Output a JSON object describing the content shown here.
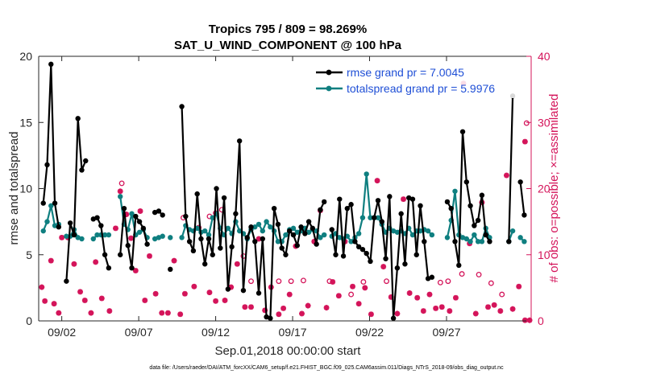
{
  "chart_data": {
    "type": "line",
    "title_line1": "Tropics 795 / 809 = 98.269%",
    "title_line2": "SAT_U_WIND_COMPONENT @ 100 hPa",
    "xlabel": "Sep.01,2018 00:00:00 start",
    "ylabel_left": "rmse and totalspread",
    "ylabel_right": "# of obs: o=possible; ×=assimilated",
    "footnote": "data file: /Users/raeder/DAI/ATM_forcXX/CAM6_setup/f.e21.FHIST_BGC.f09_025.CAM6assim.011/Diags_NTrS_2018-09/obs_diag_output.nc",
    "x_range": [
      0,
      32
    ],
    "y_left_range": [
      0,
      20
    ],
    "y_right_range": [
      0,
      40
    ],
    "x_ticks": [
      {
        "value": 1.5,
        "label": "09/02"
      },
      {
        "value": 6.5,
        "label": "09/07"
      },
      {
        "value": 11.5,
        "label": "09/12"
      },
      {
        "value": 16.5,
        "label": "09/17"
      },
      {
        "value": 21.5,
        "label": "09/22"
      },
      {
        "value": 26.5,
        "label": "09/27"
      }
    ],
    "y_left_ticks": [
      "0",
      "5",
      "10",
      "15",
      "20"
    ],
    "y_right_ticks": [
      "0",
      "10",
      "20",
      "30",
      "40"
    ],
    "colors": {
      "rmse": "#000000",
      "spread": "#0f7f80",
      "obs": "#d4145a",
      "legend_text": "#1f4fd6"
    },
    "series": [
      {
        "name": "rmse grand pr = 7.0045",
        "values": [
          8.9,
          11.8,
          19.4,
          8.9,
          7.1,
          null,
          3.0,
          7.4,
          6.5,
          15.3,
          11.4,
          12.1,
          null,
          7.7,
          7.8,
          7.2,
          5.0,
          4.0,
          null,
          null,
          5.0,
          8.5,
          5.7,
          4.0,
          7.9,
          7.5,
          7.0,
          5.8,
          null,
          8.2,
          8.3,
          8.0,
          null,
          3.9,
          null,
          null,
          16.2,
          7.9,
          6.0,
          5.3,
          9.6,
          6.2,
          4.3,
          6.2,
          5.0,
          10.0,
          5.5,
          9.3,
          2.4,
          5.6,
          8.1,
          13.6,
          2.3,
          6.3,
          7.1,
          6.0,
          2.1,
          6.2,
          0.3,
          0.2,
          8.5,
          7.3,
          5.5,
          5.0,
          6.8,
          6.5,
          5.7,
          7.1,
          6.6,
          7.5,
          7.0,
          5.8,
          8.4,
          9.0,
          null,
          6.9,
          5.0,
          9.2,
          4.9,
          8.5,
          8.8,
          6.0,
          5.6,
          5.4,
          5.1,
          4.5,
          7.8,
          9.1,
          7.5,
          4.7,
          9.4,
          0.2,
          4.0,
          8.1,
          4.3,
          9.3,
          9.2,
          5.0,
          8.7,
          6.0,
          3.2,
          3.3,
          null,
          null,
          null,
          9.0,
          8.5,
          6.0,
          4.2,
          14.3,
          10.5,
          8.7,
          7.2,
          7.6,
          9.5,
          6.5,
          6.0,
          null,
          null,
          null,
          null,
          6.0,
          17.0,
          null,
          10.5,
          8.0
        ]
      },
      {
        "name": "totalspread grand pr = 5.9976",
        "values": [
          6.8,
          7.5,
          8.7,
          7.2,
          7.3,
          null,
          6.4,
          6.4,
          6.9,
          6.3,
          6.2,
          null,
          null,
          6.2,
          6.5,
          6.5,
          6.5,
          6.5,
          null,
          null,
          9.4,
          7.3,
          6.9,
          8.1,
          6.5,
          6.7,
          6.9,
          6.3,
          null,
          6.2,
          6.3,
          6.4,
          null,
          6.3,
          null,
          null,
          6.3,
          7.2,
          6.9,
          6.8,
          7.0,
          6.7,
          6.8,
          6.5,
          7.8,
          8.1,
          7.0,
          6.5,
          7.0,
          6.6,
          7.5,
          6.8,
          6.6,
          6.2,
          6.9,
          7.1,
          7.3,
          6.8,
          7.5,
          7.1,
          6.8,
          6.0,
          6.0,
          6.5,
          6.9,
          7.0,
          6.7,
          6.8,
          7.0,
          6.7,
          6.9,
          6.8,
          6.3,
          6.5,
          null,
          6.4,
          6.6,
          6.3,
          6.2,
          6.4,
          6.0,
          6.3,
          6.6,
          7.8,
          11.1,
          7.8,
          7.8,
          7.8,
          7.3,
          6.7,
          7.0,
          6.8,
          6.7,
          6.8,
          6.6,
          7.0,
          6.5,
          6.8,
          6.8,
          6.9,
          6.8,
          6.5,
          null,
          null,
          null,
          6.3,
          7.6,
          9.8,
          6.5,
          6.3,
          6.2,
          6.0,
          6.5,
          6.0,
          6.0,
          7.0,
          6.3,
          null,
          null,
          null,
          null,
          6.0,
          6.8,
          null,
          6.3,
          6.0
        ]
      }
    ],
    "obs_possible": [
      {
        "x": 5.4,
        "y": 20.8
      },
      {
        "x": 9.4,
        "y": 15.6
      },
      {
        "x": 11.1,
        "y": 15.8
      },
      {
        "x": 11.9,
        "y": 16.8
      },
      {
        "x": 11.5,
        "y": 16.3
      },
      {
        "x": 13.3,
        "y": 9.8
      },
      {
        "x": 13.8,
        "y": 6.0
      },
      {
        "x": 15.6,
        "y": 6.0
      },
      {
        "x": 16.4,
        "y": 6.0
      },
      {
        "x": 17.2,
        "y": 6.1
      },
      {
        "x": 18.9,
        "y": 6.0
      },
      {
        "x": 20.3,
        "y": 4.0
      },
      {
        "x": 21.1,
        "y": 5.9
      },
      {
        "x": 22.6,
        "y": 6.0
      },
      {
        "x": 26.1,
        "y": 5.8
      },
      {
        "x": 26.6,
        "y": 6.0
      },
      {
        "x": 27.5,
        "y": 7.1
      },
      {
        "x": 28.6,
        "y": 7.0
      },
      {
        "x": 29.4,
        "y": 5.7
      },
      {
        "x": 30.1,
        "y": 4.0
      },
      {
        "x": 31.7,
        "y": 29.9
      }
    ],
    "obs_assimilated": [
      {
        "x": 0.2,
        "y": 5.1
      },
      {
        "x": 0.4,
        "y": 3.0
      },
      {
        "x": 0.8,
        "y": 9.1
      },
      {
        "x": 1.0,
        "y": 2.6
      },
      {
        "x": 1.3,
        "y": 1.2
      },
      {
        "x": 1.5,
        "y": 12.6
      },
      {
        "x": 1.9,
        "y": 12.6
      },
      {
        "x": 2.3,
        "y": 8.6
      },
      {
        "x": 2.7,
        "y": 4.4
      },
      {
        "x": 3.0,
        "y": 3.1
      },
      {
        "x": 3.4,
        "y": 1.2
      },
      {
        "x": 3.7,
        "y": 8.9
      },
      {
        "x": 4.1,
        "y": 3.4
      },
      {
        "x": 4.6,
        "y": 1.5
      },
      {
        "x": 5.0,
        "y": 14.0
      },
      {
        "x": 5.3,
        "y": 19.6
      },
      {
        "x": 5.7,
        "y": 16.1
      },
      {
        "x": 6.0,
        "y": 12.5
      },
      {
        "x": 6.3,
        "y": 7.6
      },
      {
        "x": 6.6,
        "y": 16.6
      },
      {
        "x": 6.9,
        "y": 3.1
      },
      {
        "x": 7.2,
        "y": 9.8
      },
      {
        "x": 7.6,
        "y": 4.1
      },
      {
        "x": 8.0,
        "y": 1.2
      },
      {
        "x": 8.4,
        "y": 1.2
      },
      {
        "x": 8.8,
        "y": 9.1
      },
      {
        "x": 9.2,
        "y": 1.0
      },
      {
        "x": 9.5,
        "y": 4.1
      },
      {
        "x": 10.1,
        "y": 5.2
      },
      {
        "x": 10.4,
        "y": 14.1
      },
      {
        "x": 11.1,
        "y": 4.3
      },
      {
        "x": 11.5,
        "y": 3.0
      },
      {
        "x": 12.1,
        "y": 3.1
      },
      {
        "x": 12.5,
        "y": 5.1
      },
      {
        "x": 12.9,
        "y": 8.6
      },
      {
        "x": 13.4,
        "y": 2.1
      },
      {
        "x": 13.8,
        "y": 2.1
      },
      {
        "x": 14.3,
        "y": 12.4
      },
      {
        "x": 14.7,
        "y": 1.6
      },
      {
        "x": 15.1,
        "y": 5.1
      },
      {
        "x": 15.6,
        "y": 1.0
      },
      {
        "x": 15.9,
        "y": 1.9
      },
      {
        "x": 16.3,
        "y": 4.0
      },
      {
        "x": 16.7,
        "y": 11.3
      },
      {
        "x": 17.1,
        "y": 1.1
      },
      {
        "x": 17.5,
        "y": 2.3
      },
      {
        "x": 17.9,
        "y": 12.0
      },
      {
        "x": 18.3,
        "y": 16.7
      },
      {
        "x": 18.7,
        "y": 2.0
      },
      {
        "x": 19.1,
        "y": 5.9
      },
      {
        "x": 19.5,
        "y": 3.8
      },
      {
        "x": 19.9,
        "y": 12.0
      },
      {
        "x": 20.4,
        "y": 5.2
      },
      {
        "x": 20.8,
        "y": 2.6
      },
      {
        "x": 21.2,
        "y": 5.0
      },
      {
        "x": 21.6,
        "y": 1.0
      },
      {
        "x": 22.0,
        "y": 21.2
      },
      {
        "x": 22.4,
        "y": 8.2
      },
      {
        "x": 22.9,
        "y": 3.6
      },
      {
        "x": 23.3,
        "y": 1.1
      },
      {
        "x": 23.7,
        "y": 18.4
      },
      {
        "x": 24.1,
        "y": 4.2
      },
      {
        "x": 24.6,
        "y": 3.5
      },
      {
        "x": 25.0,
        "y": 1.5
      },
      {
        "x": 25.4,
        "y": 4.0
      },
      {
        "x": 25.8,
        "y": 1.9
      },
      {
        "x": 26.2,
        "y": 2.1
      },
      {
        "x": 26.7,
        "y": 1.5
      },
      {
        "x": 27.1,
        "y": 3.5
      },
      {
        "x": 27.6,
        "y": 35.9
      },
      {
        "x": 28.0,
        "y": 11.7
      },
      {
        "x": 28.4,
        "y": 1.1
      },
      {
        "x": 28.8,
        "y": 17.9
      },
      {
        "x": 29.2,
        "y": 2.1
      },
      {
        "x": 29.6,
        "y": 2.4
      },
      {
        "x": 30.0,
        "y": 1.5
      },
      {
        "x": 30.4,
        "y": 22.0
      },
      {
        "x": 30.8,
        "y": 1.8
      },
      {
        "x": 31.2,
        "y": 5.2
      },
      {
        "x": 31.6,
        "y": 27.1
      },
      {
        "x": 31.6,
        "y": 0.1
      },
      {
        "x": 31.9,
        "y": 0.1
      }
    ]
  }
}
